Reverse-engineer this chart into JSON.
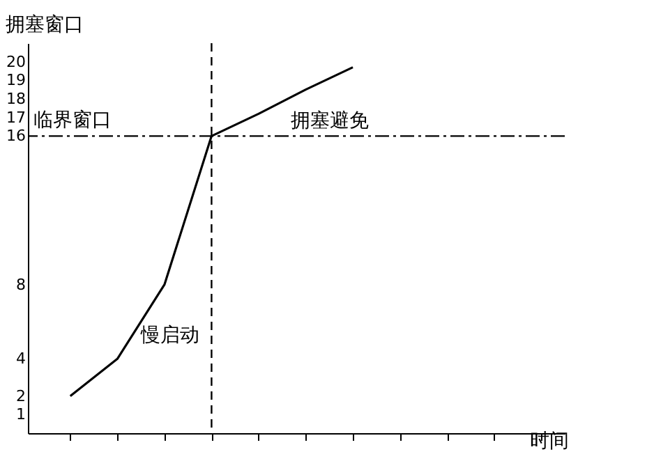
{
  "chart_data": {
    "type": "line",
    "xlabel": "时间",
    "ylabel": "拥塞窗口",
    "categories": [
      null,
      null,
      null,
      null,
      null,
      null,
      null,
      null,
      null,
      null,
      null
    ],
    "series": [
      {
        "color": "#000000",
        "values": [
          2,
          4,
          8,
          16,
          17.2,
          18.5,
          19.7,
          null,
          null,
          null,
          null
        ]
      }
    ],
    "ylim": [
      0,
      21
    ],
    "yticks": [
      1,
      2,
      4,
      8,
      16,
      17,
      18,
      19,
      20
    ],
    "tick_labels": "y",
    "grid": false,
    "marker": "none",
    "line_style": "solid",
    "ref_lines": [
      {
        "axis": "y",
        "value": 16,
        "label": "临界窗口",
        "color": "#000000",
        "line_style": "dashdot"
      }
    ],
    "annotations": [
      "慢启动",
      "拥塞避免"
    ]
  }
}
